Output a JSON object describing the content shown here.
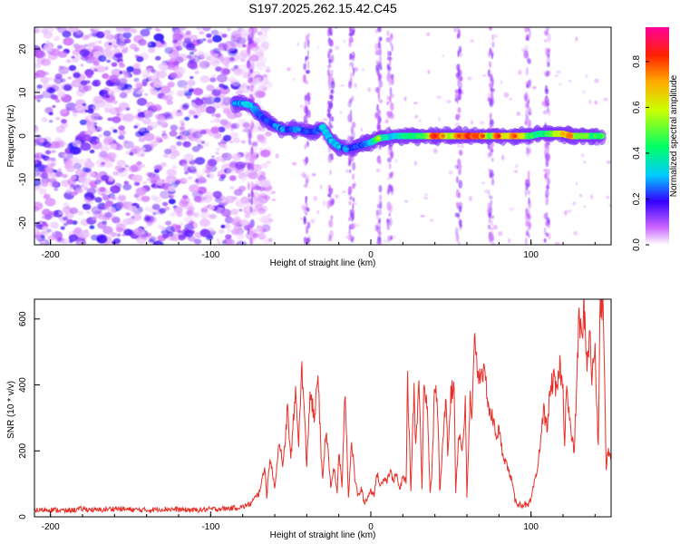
{
  "title": "S197.2025.262.15.42.C45",
  "chart_data": [
    {
      "type": "heatmap",
      "title": "S197.2025.262.15.42.C45",
      "xlabel": "Height of straight line (km)",
      "ylabel": "Frequency (Hz)",
      "xlim": [
        -210,
        150
      ],
      "ylim": [
        -25,
        25
      ],
      "xticks": [
        -200,
        -100,
        0,
        100
      ],
      "xtick_labels": [
        "-200",
        "-100",
        "0",
        "100"
      ],
      "yticks": [
        -20,
        -10,
        0,
        10,
        20
      ],
      "ytick_labels": [
        "-20",
        "-10",
        "0",
        "10",
        "20"
      ],
      "noise_region_x": [
        -210,
        -75
      ],
      "ridge": [
        {
          "x": -85,
          "y": 7.5,
          "amp": 0.25
        },
        {
          "x": -80,
          "y": 7.5,
          "amp": 0.3
        },
        {
          "x": -75,
          "y": 7.0,
          "amp": 0.3
        },
        {
          "x": -70,
          "y": 5.0,
          "amp": 0.2
        },
        {
          "x": -65,
          "y": 3.5,
          "amp": 0.2
        },
        {
          "x": -60,
          "y": 2.5,
          "amp": 0.25
        },
        {
          "x": -55,
          "y": 1.5,
          "amp": 0.25
        },
        {
          "x": -50,
          "y": 1.5,
          "amp": 0.2
        },
        {
          "x": -45,
          "y": 1.5,
          "amp": 0.25
        },
        {
          "x": -40,
          "y": 1.0,
          "amp": 0.2
        },
        {
          "x": -35,
          "y": 1.0,
          "amp": 0.2
        },
        {
          "x": -30,
          "y": 2.0,
          "amp": 0.3
        },
        {
          "x": -25,
          "y": -1.0,
          "amp": 0.3
        },
        {
          "x": -20,
          "y": -2.5,
          "amp": 0.3
        },
        {
          "x": -15,
          "y": -3.0,
          "amp": 0.25
        },
        {
          "x": -10,
          "y": -2.5,
          "amp": 0.2
        },
        {
          "x": -5,
          "y": -2.0,
          "amp": 0.2
        },
        {
          "x": 0,
          "y": -1.5,
          "amp": 0.3
        },
        {
          "x": 5,
          "y": -0.5,
          "amp": 0.55
        },
        {
          "x": 10,
          "y": -0.3,
          "amp": 0.35
        },
        {
          "x": 15,
          "y": 0.0,
          "amp": 0.3
        },
        {
          "x": 20,
          "y": 0.0,
          "amp": 0.4
        },
        {
          "x": 25,
          "y": 0.0,
          "amp": 0.4
        },
        {
          "x": 30,
          "y": 0.0,
          "amp": 0.45
        },
        {
          "x": 35,
          "y": 0.0,
          "amp": 0.5
        },
        {
          "x": 40,
          "y": 0.0,
          "amp": 0.85
        },
        {
          "x": 45,
          "y": 0.0,
          "amp": 0.75
        },
        {
          "x": 50,
          "y": 0.0,
          "amp": 0.55
        },
        {
          "x": 55,
          "y": 0.0,
          "amp": 0.8
        },
        {
          "x": 60,
          "y": 0.0,
          "amp": 0.85
        },
        {
          "x": 65,
          "y": 0.0,
          "amp": 0.8
        },
        {
          "x": 70,
          "y": 0.0,
          "amp": 0.8
        },
        {
          "x": 75,
          "y": 0.0,
          "amp": 0.5
        },
        {
          "x": 80,
          "y": 0.0,
          "amp": 0.85
        },
        {
          "x": 85,
          "y": 0.0,
          "amp": 0.6
        },
        {
          "x": 90,
          "y": 0.0,
          "amp": 0.8
        },
        {
          "x": 95,
          "y": 0.0,
          "amp": 0.6
        },
        {
          "x": 100,
          "y": 0.0,
          "amp": 0.45
        },
        {
          "x": 105,
          "y": 0.5,
          "amp": 0.4
        },
        {
          "x": 110,
          "y": 0.5,
          "amp": 0.45
        },
        {
          "x": 115,
          "y": 0.5,
          "amp": 0.55
        },
        {
          "x": 120,
          "y": 0.5,
          "amp": 0.7
        },
        {
          "x": 125,
          "y": 0.0,
          "amp": 0.75
        },
        {
          "x": 130,
          "y": 0.0,
          "amp": 0.5
        },
        {
          "x": 135,
          "y": 0.0,
          "amp": 0.5
        },
        {
          "x": 140,
          "y": 0.0,
          "amp": 0.45
        },
        {
          "x": 145,
          "y": 0.0,
          "amp": 0.45
        }
      ],
      "vertical_streaks_x": [
        -75,
        -40,
        -25,
        -12,
        5,
        12,
        55,
        75,
        98,
        110
      ],
      "colorbar": {
        "label": "Normalized spectral amplitude",
        "min": 0.0,
        "max": 0.95,
        "ticks": [
          0.0,
          0.2,
          0.4,
          0.6,
          0.8
        ],
        "tick_labels": [
          "0.0",
          "0.2",
          "0.4",
          "0.6",
          "0.8"
        ]
      }
    },
    {
      "type": "line",
      "xlabel": "Height of straight line (km)",
      "ylabel": "SNR (10 * v/v)",
      "xlim": [
        -210,
        150
      ],
      "ylim": [
        0,
        660
      ],
      "xticks": [
        -200,
        -100,
        0,
        100
      ],
      "xtick_labels": [
        "-200",
        "-100",
        "0",
        "100"
      ],
      "yticks": [
        0,
        200,
        400,
        600
      ],
      "ytick_labels": [
        "0",
        "200",
        "400",
        "600"
      ],
      "color": "#e8302a",
      "x": [
        -210,
        -200,
        -190,
        -180,
        -170,
        -160,
        -150,
        -140,
        -130,
        -120,
        -110,
        -100,
        -90,
        -80,
        -75,
        -70,
        -66,
        -65,
        -63,
        -60,
        -57,
        -55,
        -52,
        -50,
        -47,
        -45,
        -43,
        -41,
        -40,
        -38,
        -35,
        -33,
        -31,
        -30,
        -28,
        -25,
        -23,
        -21,
        -20,
        -18,
        -16,
        -14,
        -12,
        -10,
        -8,
        -6,
        -4,
        -2,
        0,
        2,
        4,
        6,
        8,
        10,
        12,
        14,
        16,
        18,
        20,
        22,
        23,
        25,
        27,
        28,
        30,
        32,
        33,
        35,
        37,
        38,
        40,
        42,
        43,
        45,
        47,
        48,
        50,
        52,
        53,
        55,
        57,
        59,
        60,
        62,
        63,
        65,
        67,
        69,
        70,
        72,
        74,
        76,
        78,
        80,
        82,
        84,
        86,
        88,
        90,
        92,
        94,
        96,
        98,
        100,
        102,
        104,
        106,
        108,
        110,
        112,
        114,
        116,
        118,
        120,
        121,
        122,
        124,
        125,
        127,
        128,
        130,
        132,
        133,
        135,
        137,
        138,
        140,
        142,
        143,
        145,
        147,
        148,
        150
      ],
      "y": [
        20,
        22,
        18,
        24,
        20,
        25,
        22,
        20,
        24,
        22,
        20,
        23,
        25,
        30,
        40,
        70,
        150,
        60,
        180,
        90,
        240,
        140,
        330,
        170,
        380,
        230,
        460,
        260,
        150,
        380,
        290,
        450,
        170,
        120,
        270,
        90,
        150,
        70,
        200,
        95,
        390,
        60,
        230,
        120,
        60,
        85,
        40,
        60,
        80,
        70,
        130,
        90,
        120,
        110,
        140,
        110,
        130,
        80,
        120,
        110,
        410,
        80,
        400,
        210,
        410,
        90,
        400,
        360,
        80,
        120,
        410,
        300,
        70,
        220,
        380,
        200,
        370,
        400,
        80,
        260,
        200,
        340,
        60,
        360,
        280,
        560,
        420,
        450,
        440,
        400,
        320,
        300,
        250,
        260,
        200,
        170,
        140,
        110,
        50,
        40,
        35,
        40,
        30,
        50,
        100,
        140,
        240,
        320,
        270,
        380,
        420,
        370,
        460,
        380,
        220,
        400,
        300,
        250,
        200,
        330,
        610,
        520,
        650,
        470,
        550,
        420,
        510,
        200,
        620,
        650,
        140,
        200,
        180
      ]
    }
  ]
}
